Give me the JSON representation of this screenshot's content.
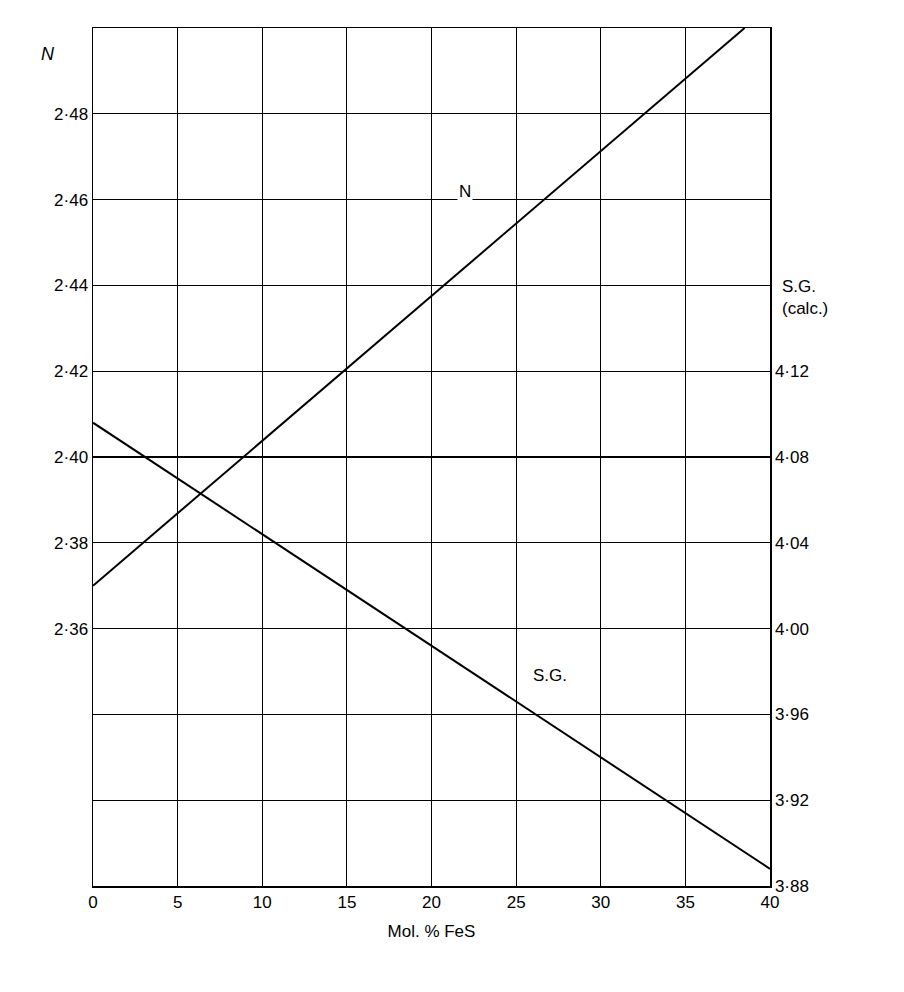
{
  "chart_data": {
    "type": "line",
    "xlabel": "Mol. % FeS",
    "ylabel": "N",
    "y2label": "S.G.\n(calc.)",
    "x": [
      0,
      40
    ],
    "series": [
      {
        "name": "N",
        "color": "#000000",
        "axis": "y",
        "x": [
          0,
          38.5
        ],
        "values": [
          2.37,
          2.5
        ]
      },
      {
        "name": "S.G.",
        "color": "#000000",
        "axis": "y2",
        "x": [
          0,
          40
        ],
        "values": [
          4.096,
          3.888
        ]
      }
    ],
    "xlim": [
      0,
      40
    ],
    "xticks": [
      0,
      5,
      10,
      15,
      20,
      25,
      30,
      35,
      40
    ],
    "ylim": [
      2.3,
      2.5
    ],
    "yticks": [
      {
        "value": 2.36,
        "label": "2·36"
      },
      {
        "value": 2.38,
        "label": "2·38"
      },
      {
        "value": 2.4,
        "label": "2·40"
      },
      {
        "value": 2.42,
        "label": "2·42"
      },
      {
        "value": 2.44,
        "label": "2·44"
      },
      {
        "value": 2.46,
        "label": "2·46"
      },
      {
        "value": 2.48,
        "label": "2·48"
      }
    ],
    "y2lim": [
      3.88,
      4.28
    ],
    "y2ticks": [
      {
        "value": 3.88,
        "label": "3·88"
      },
      {
        "value": 3.92,
        "label": "3·92"
      },
      {
        "value": 3.96,
        "label": "3·96"
      },
      {
        "value": 4.0,
        "label": "4·00"
      },
      {
        "value": 4.04,
        "label": "4·04"
      },
      {
        "value": 4.08,
        "label": "4·08"
      },
      {
        "value": 4.12,
        "label": "4·12"
      }
    ],
    "annotations": [
      {
        "text": "N",
        "x": 22,
        "y": 2.462,
        "axis": "y"
      },
      {
        "text": "S.G.",
        "x": 27,
        "y": 3.978,
        "axis": "y2"
      }
    ],
    "grid": true,
    "legend": false
  }
}
